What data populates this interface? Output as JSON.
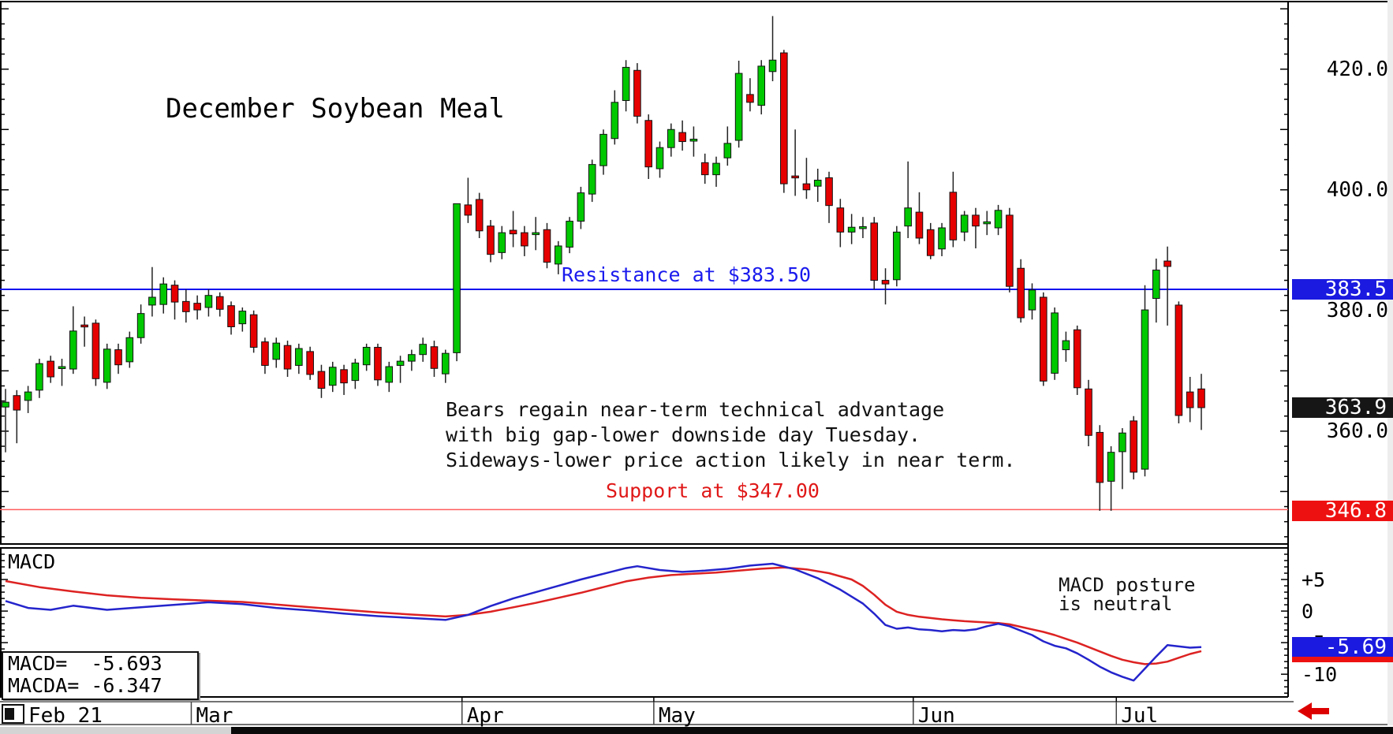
{
  "title": "December Soybean Meal",
  "annotations": {
    "resistance_label": "Resistance at $383.50",
    "support_label": "Support at $347.00",
    "commentary_line1": "Bears regain near-term technical advantage",
    "commentary_line2": "with big gap-lower downside day Tuesday.",
    "commentary_line3": "Sideways-lower price action likely in near term.",
    "macd_posture_line1": "MACD posture",
    "macd_posture_line2": "is neutral"
  },
  "macd_panel": {
    "label": "MACD",
    "legend_line1": "MACD=  -5.693",
    "legend_line2": "MACDA= -6.347",
    "macd_value": -5.693,
    "macda_value": -6.347,
    "axis_labels": [
      {
        "value": 5,
        "label": "+5"
      },
      {
        "value": 0,
        "label": "0"
      },
      {
        "value": -5,
        "label": "-5"
      },
      {
        "value": -10,
        "label": "-10"
      }
    ],
    "badge": {
      "label": "-5.69",
      "value": -5.69,
      "color": "#1a1ae0",
      "text_color": "#ffffff"
    },
    "macda_sliver_color": "#ee1111",
    "line_color_macd": "#2424cc",
    "line_color_macda": "#dd2222"
  },
  "price_axis": {
    "labels": [
      {
        "value": 420.0,
        "label": "420.0"
      },
      {
        "value": 400.0,
        "label": "400.0"
      },
      {
        "value": 380.0,
        "label": "380.0"
      },
      {
        "value": 360.0,
        "label": "360.0"
      }
    ],
    "badges": [
      {
        "label": "383.5",
        "value": 383.5,
        "color": "#1a1ae0",
        "text_color": "#ffffff"
      },
      {
        "label": "363.9",
        "value": 363.9,
        "color": "#161616",
        "text_color": "#ffffff"
      },
      {
        "label": "346.8",
        "value": 346.8,
        "color": "#ee1111",
        "text_color": "#ffffff"
      }
    ]
  },
  "levels": {
    "resistance": {
      "price": 383.5,
      "color": "#1414ee"
    },
    "support": {
      "price": 347.0,
      "color": "#ff5c5c"
    }
  },
  "x_axis": {
    "months": [
      {
        "label": "Feb 21",
        "start_index": 0
      },
      {
        "label": "Mar",
        "start_index": 17
      },
      {
        "label": "Apr",
        "start_index": 41
      },
      {
        "label": "May",
        "start_index": 58
      },
      {
        "label": "Jun",
        "start_index": 81
      },
      {
        "label": "Jul",
        "start_index": 99
      }
    ]
  },
  "chart_data": {
    "type": "candlestick",
    "title": "December Soybean Meal",
    "last_close": 363.9,
    "price_view_range": [
      341.3,
      431.2
    ],
    "colors": {
      "up": "#00c800",
      "down": "#e60000",
      "wick": "#222222"
    },
    "candles": [
      [
        364.0,
        367.0,
        356.5,
        364.8
      ],
      [
        365.9,
        366.8,
        358.0,
        363.5
      ],
      [
        365.1,
        367.5,
        363.0,
        366.5
      ],
      [
        366.8,
        372.0,
        365.5,
        371.2
      ],
      [
        371.6,
        372.5,
        368.0,
        369.0
      ],
      [
        370.5,
        372.0,
        367.5,
        370.7
      ],
      [
        370.3,
        380.7,
        369.5,
        376.6
      ],
      [
        377.6,
        379.0,
        374.0,
        377.5
      ],
      [
        377.9,
        378.5,
        367.5,
        368.7
      ],
      [
        368.1,
        374.5,
        367.0,
        373.6
      ],
      [
        373.5,
        374.5,
        369.5,
        371.0
      ],
      [
        371.5,
        376.5,
        370.5,
        375.5
      ],
      [
        375.5,
        381.0,
        374.5,
        379.5
      ],
      [
        380.9,
        387.2,
        379.0,
        382.2
      ],
      [
        381.0,
        385.5,
        379.5,
        384.4
      ],
      [
        384.2,
        385.0,
        378.5,
        381.4
      ],
      [
        381.5,
        383.5,
        378.0,
        379.8
      ],
      [
        381.2,
        382.5,
        378.5,
        380.1
      ],
      [
        380.5,
        383.5,
        379.0,
        382.5
      ],
      [
        382.3,
        383.0,
        379.0,
        380.2
      ],
      [
        380.8,
        381.5,
        376.0,
        377.3
      ],
      [
        377.8,
        380.5,
        376.5,
        379.9
      ],
      [
        379.3,
        380.0,
        373.0,
        373.9
      ],
      [
        374.8,
        375.5,
        369.5,
        370.9
      ],
      [
        371.9,
        375.5,
        370.5,
        374.6
      ],
      [
        374.2,
        375.0,
        369.0,
        370.3
      ],
      [
        370.9,
        374.5,
        369.5,
        373.7
      ],
      [
        373.2,
        374.0,
        368.5,
        369.4
      ],
      [
        369.9,
        371.0,
        365.5,
        367.1
      ],
      [
        367.6,
        371.5,
        366.5,
        370.6
      ],
      [
        370.2,
        371.0,
        366.0,
        368.0
      ],
      [
        368.4,
        372.0,
        367.0,
        371.3
      ],
      [
        371.0,
        374.5,
        370.0,
        373.9
      ],
      [
        373.9,
        374.5,
        367.5,
        368.5
      ],
      [
        368.1,
        371.5,
        366.5,
        370.7
      ],
      [
        370.9,
        372.5,
        368.0,
        371.6
      ],
      [
        371.6,
        373.5,
        370.0,
        372.7
      ],
      [
        372.7,
        375.5,
        371.5,
        374.4
      ],
      [
        374.0,
        375.0,
        369.0,
        370.4
      ],
      [
        369.5,
        373.5,
        368.0,
        372.9
      ],
      [
        373.0,
        397.7,
        371.6,
        397.7
      ],
      [
        397.5,
        402.0,
        394.5,
        395.8
      ],
      [
        398.4,
        399.5,
        392.0,
        393.2
      ],
      [
        394.0,
        395.0,
        388.0,
        389.3
      ],
      [
        389.6,
        394.0,
        388.5,
        392.9
      ],
      [
        393.3,
        396.5,
        390.5,
        392.7
      ],
      [
        392.9,
        394.0,
        389.0,
        390.7
      ],
      [
        392.7,
        395.5,
        390.0,
        392.9
      ],
      [
        393.4,
        394.5,
        387.0,
        388.0
      ],
      [
        387.7,
        391.5,
        386.0,
        390.7
      ],
      [
        390.5,
        395.5,
        389.5,
        394.8
      ],
      [
        394.8,
        400.5,
        393.5,
        399.5
      ],
      [
        399.3,
        405.0,
        398.0,
        404.2
      ],
      [
        404.0,
        410.0,
        402.5,
        409.2
      ],
      [
        408.5,
        416.5,
        407.5,
        414.5
      ],
      [
        414.8,
        421.5,
        413.0,
        420.3
      ],
      [
        419.8,
        421.0,
        411.0,
        412.2
      ],
      [
        411.5,
        412.5,
        401.8,
        403.8
      ],
      [
        403.5,
        408.0,
        402.0,
        407.0
      ],
      [
        407.0,
        411.0,
        405.5,
        410.0
      ],
      [
        409.5,
        411.5,
        406.5,
        408.0
      ],
      [
        408.3,
        410.5,
        405.5,
        408.4
      ],
      [
        404.5,
        406.0,
        401.0,
        402.5
      ],
      [
        402.5,
        405.5,
        400.5,
        404.4
      ],
      [
        405.3,
        410.5,
        404.0,
        407.7
      ],
      [
        408.2,
        421.4,
        407.0,
        419.3
      ],
      [
        415.8,
        418.5,
        413.0,
        414.5
      ],
      [
        414.0,
        421.5,
        412.5,
        420.5
      ],
      [
        419.6,
        428.8,
        418.0,
        421.5
      ],
      [
        422.7,
        423.2,
        399.5,
        401.0
      ],
      [
        402.3,
        410.0,
        399.0,
        402.0
      ],
      [
        401.0,
        405.3,
        398.5,
        400.0
      ],
      [
        400.6,
        403.5,
        398.0,
        401.6
      ],
      [
        402.0,
        403.0,
        394.5,
        397.4
      ],
      [
        397.0,
        398.5,
        390.5,
        393.0
      ],
      [
        393.0,
        396.0,
        391.0,
        393.8
      ],
      [
        393.8,
        395.5,
        392.0,
        393.9
      ],
      [
        394.5,
        395.5,
        383.5,
        385.0
      ],
      [
        385.0,
        387.0,
        381.0,
        384.4
      ],
      [
        385.1,
        394.0,
        384.0,
        393.0
      ],
      [
        394.0,
        404.7,
        392.0,
        397.0
      ],
      [
        396.3,
        399.6,
        391.0,
        392.0
      ],
      [
        393.4,
        394.5,
        388.5,
        389.1
      ],
      [
        390.2,
        394.5,
        389.0,
        393.7
      ],
      [
        399.6,
        403.0,
        390.5,
        391.7
      ],
      [
        393.0,
        396.5,
        391.5,
        395.8
      ],
      [
        395.8,
        397.0,
        390.3,
        394.0
      ],
      [
        394.6,
        396.5,
        392.5,
        394.7
      ],
      [
        393.7,
        397.5,
        392.5,
        396.6
      ],
      [
        395.8,
        397.0,
        383.0,
        384.0
      ],
      [
        387.0,
        388.5,
        378.0,
        378.8
      ],
      [
        380.1,
        384.5,
        378.5,
        383.4
      ],
      [
        382.2,
        383.0,
        367.5,
        368.3
      ],
      [
        369.6,
        380.5,
        368.5,
        379.6
      ],
      [
        373.5,
        376.5,
        371.5,
        375.0
      ],
      [
        376.8,
        377.5,
        366.0,
        367.2
      ],
      [
        367.0,
        368.5,
        357.5,
        359.3
      ],
      [
        359.8,
        361.0,
        346.8,
        351.5
      ],
      [
        351.7,
        357.5,
        346.8,
        356.5
      ],
      [
        356.6,
        360.5,
        350.4,
        359.7
      ],
      [
        361.7,
        362.5,
        352.0,
        353.2
      ],
      [
        353.7,
        384.2,
        352.5,
        380.1
      ],
      [
        382.0,
        388.6,
        378.0,
        386.7
      ],
      [
        388.2,
        390.6,
        377.5,
        387.3
      ],
      [
        380.9,
        381.5,
        361.3,
        362.6
      ],
      [
        366.5,
        369.0,
        361.5,
        363.9
      ],
      [
        367.0,
        369.5,
        360.2,
        363.9
      ]
    ],
    "macd": {
      "type": "line",
      "value_view_range": [
        -13.6,
        10.0
      ],
      "series": [
        {
          "name": "MACD",
          "color": "#2424cc",
          "points": [
            [
              0,
              1.6
            ],
            [
              2,
              0.5
            ],
            [
              4,
              0.2
            ],
            [
              6,
              0.85
            ],
            [
              9,
              0.2
            ],
            [
              12,
              0.6
            ],
            [
              15,
              1.0
            ],
            [
              18,
              1.4
            ],
            [
              21,
              1.1
            ],
            [
              24,
              0.5
            ],
            [
              27,
              0.1
            ],
            [
              30,
              -0.4
            ],
            [
              33,
              -0.8
            ],
            [
              36,
              -1.1
            ],
            [
              39,
              -1.4
            ],
            [
              41,
              -0.6
            ],
            [
              43,
              0.8
            ],
            [
              45,
              2.0
            ],
            [
              47,
              3.0
            ],
            [
              49,
              4.0
            ],
            [
              51,
              5.0
            ],
            [
              53,
              5.9
            ],
            [
              55,
              6.8
            ],
            [
              56,
              7.1
            ],
            [
              58,
              6.5
            ],
            [
              60,
              6.2
            ],
            [
              62,
              6.4
            ],
            [
              64,
              6.7
            ],
            [
              66,
              7.2
            ],
            [
              68,
              7.5
            ],
            [
              70,
              6.6
            ],
            [
              72,
              5.2
            ],
            [
              74,
              3.4
            ],
            [
              76,
              1.2
            ],
            [
              77,
              -0.4
            ],
            [
              78,
              -2.2
            ],
            [
              79,
              -2.8
            ],
            [
              80,
              -2.6
            ],
            [
              81,
              -2.9
            ],
            [
              82,
              -3.0
            ],
            [
              83,
              -3.2
            ],
            [
              84,
              -3.0
            ],
            [
              85,
              -3.1
            ],
            [
              86,
              -2.9
            ],
            [
              87,
              -2.4
            ],
            [
              88,
              -2.0
            ],
            [
              89,
              -2.4
            ],
            [
              90,
              -3.1
            ],
            [
              91,
              -3.8
            ],
            [
              92,
              -4.8
            ],
            [
              93,
              -5.5
            ],
            [
              94,
              -5.9
            ],
            [
              95,
              -6.7
            ],
            [
              96,
              -7.7
            ],
            [
              97,
              -8.8
            ],
            [
              98,
              -9.7
            ],
            [
              99,
              -10.4
            ],
            [
              100,
              -11.0
            ],
            [
              101,
              -9.1
            ],
            [
              102,
              -7.2
            ],
            [
              103,
              -5.4
            ],
            [
              104,
              -5.6
            ],
            [
              105,
              -5.8
            ],
            [
              106,
              -5.7
            ]
          ]
        },
        {
          "name": "MACDA",
          "color": "#dd2222",
          "points": [
            [
              0,
              4.75
            ],
            [
              3,
              3.8
            ],
            [
              6,
              3.1
            ],
            [
              9,
              2.5
            ],
            [
              12,
              2.1
            ],
            [
              15,
              1.85
            ],
            [
              18,
              1.65
            ],
            [
              21,
              1.45
            ],
            [
              24,
              1.05
            ],
            [
              27,
              0.6
            ],
            [
              30,
              0.2
            ],
            [
              33,
              -0.2
            ],
            [
              36,
              -0.55
            ],
            [
              39,
              -0.85
            ],
            [
              41,
              -0.6
            ],
            [
              43,
              -0.1
            ],
            [
              45,
              0.6
            ],
            [
              47,
              1.3
            ],
            [
              49,
              2.1
            ],
            [
              51,
              2.9
            ],
            [
              53,
              3.8
            ],
            [
              55,
              4.7
            ],
            [
              57,
              5.3
            ],
            [
              59,
              5.7
            ],
            [
              61,
              5.9
            ],
            [
              63,
              6.1
            ],
            [
              65,
              6.4
            ],
            [
              67,
              6.7
            ],
            [
              69,
              6.9
            ],
            [
              71,
              6.6
            ],
            [
              73,
              6.0
            ],
            [
              75,
              5.0
            ],
            [
              76,
              4.0
            ],
            [
              77,
              2.6
            ],
            [
              78,
              1.0
            ],
            [
              79,
              -0.1
            ],
            [
              80,
              -0.6
            ],
            [
              81,
              -0.9
            ],
            [
              82,
              -1.1
            ],
            [
              83,
              -1.3
            ],
            [
              84,
              -1.45
            ],
            [
              85,
              -1.6
            ],
            [
              86,
              -1.7
            ],
            [
              87,
              -1.8
            ],
            [
              88,
              -1.9
            ],
            [
              89,
              -2.1
            ],
            [
              90,
              -2.5
            ],
            [
              91,
              -2.9
            ],
            [
              92,
              -3.3
            ],
            [
              93,
              -3.8
            ],
            [
              94,
              -4.4
            ],
            [
              95,
              -5.0
            ],
            [
              96,
              -5.7
            ],
            [
              97,
              -6.4
            ],
            [
              98,
              -7.1
            ],
            [
              99,
              -7.7
            ],
            [
              100,
              -8.1
            ],
            [
              101,
              -8.4
            ],
            [
              102,
              -8.3
            ],
            [
              103,
              -8.0
            ],
            [
              104,
              -7.4
            ],
            [
              105,
              -6.8
            ],
            [
              106,
              -6.35
            ]
          ]
        }
      ]
    }
  }
}
